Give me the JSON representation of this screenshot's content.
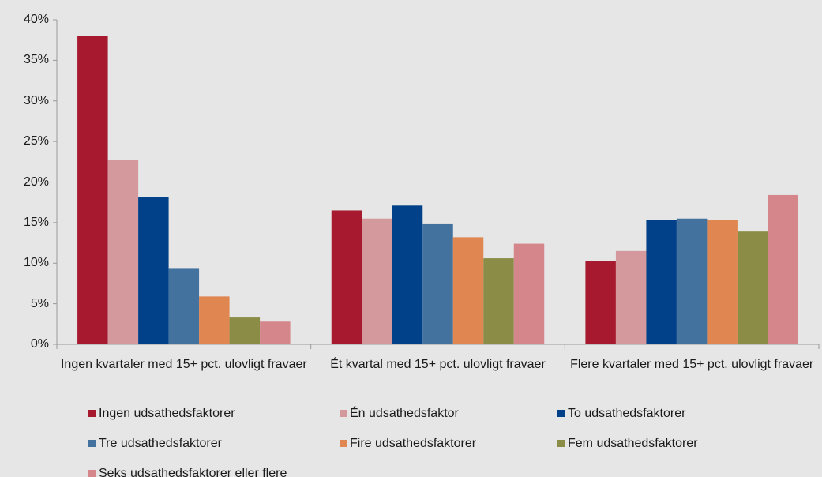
{
  "chart_data": {
    "type": "bar",
    "categories": [
      "Ingen kvartaler med 15+ pct. ulovligt fravaer",
      "Ét kvartal med 15+ pct. ulovligt fravaer",
      "Flere kvartaler med 15+ pct. ulovligt fravaer"
    ],
    "series": [
      {
        "name": "Ingen udsathedsfaktorer",
        "color": "#a6192e",
        "values": [
          38,
          16.5,
          10.3
        ]
      },
      {
        "name": "Én udsathedsfaktor",
        "color": "#d3999c",
        "values": [
          22.7,
          15.5,
          11.5
        ]
      },
      {
        "name": "To udsathedsfaktorer",
        "color": "#00418a",
        "values": [
          18.1,
          17.1,
          15.3
        ]
      },
      {
        "name": "Tre udsathedsfaktorer",
        "color": "#44729f",
        "values": [
          9.4,
          14.8,
          15.5
        ]
      },
      {
        "name": "Fire udsathedsfaktorer",
        "color": "#e08650",
        "values": [
          5.9,
          13.2,
          15.3
        ]
      },
      {
        "name": "Fem udsathedsfaktorer",
        "color": "#8b8c46",
        "values": [
          3.3,
          10.6,
          13.9
        ]
      },
      {
        "name": "Seks udsathedsfaktorer eller flere",
        "color": "#d4868b",
        "values": [
          2.8,
          12.4,
          18.4
        ]
      }
    ],
    "ylim": [
      0,
      40
    ],
    "yticks": [
      {
        "value": 0,
        "label": "0%"
      },
      {
        "value": 5,
        "label": "5%"
      },
      {
        "value": 10,
        "label": "10%"
      },
      {
        "value": 15,
        "label": "15%"
      },
      {
        "value": 20,
        "label": "20%"
      },
      {
        "value": 25,
        "label": "25%"
      },
      {
        "value": 30,
        "label": "30%"
      },
      {
        "value": 35,
        "label": "35%"
      },
      {
        "value": 40,
        "label": "40%"
      }
    ],
    "legend": "bottom"
  }
}
